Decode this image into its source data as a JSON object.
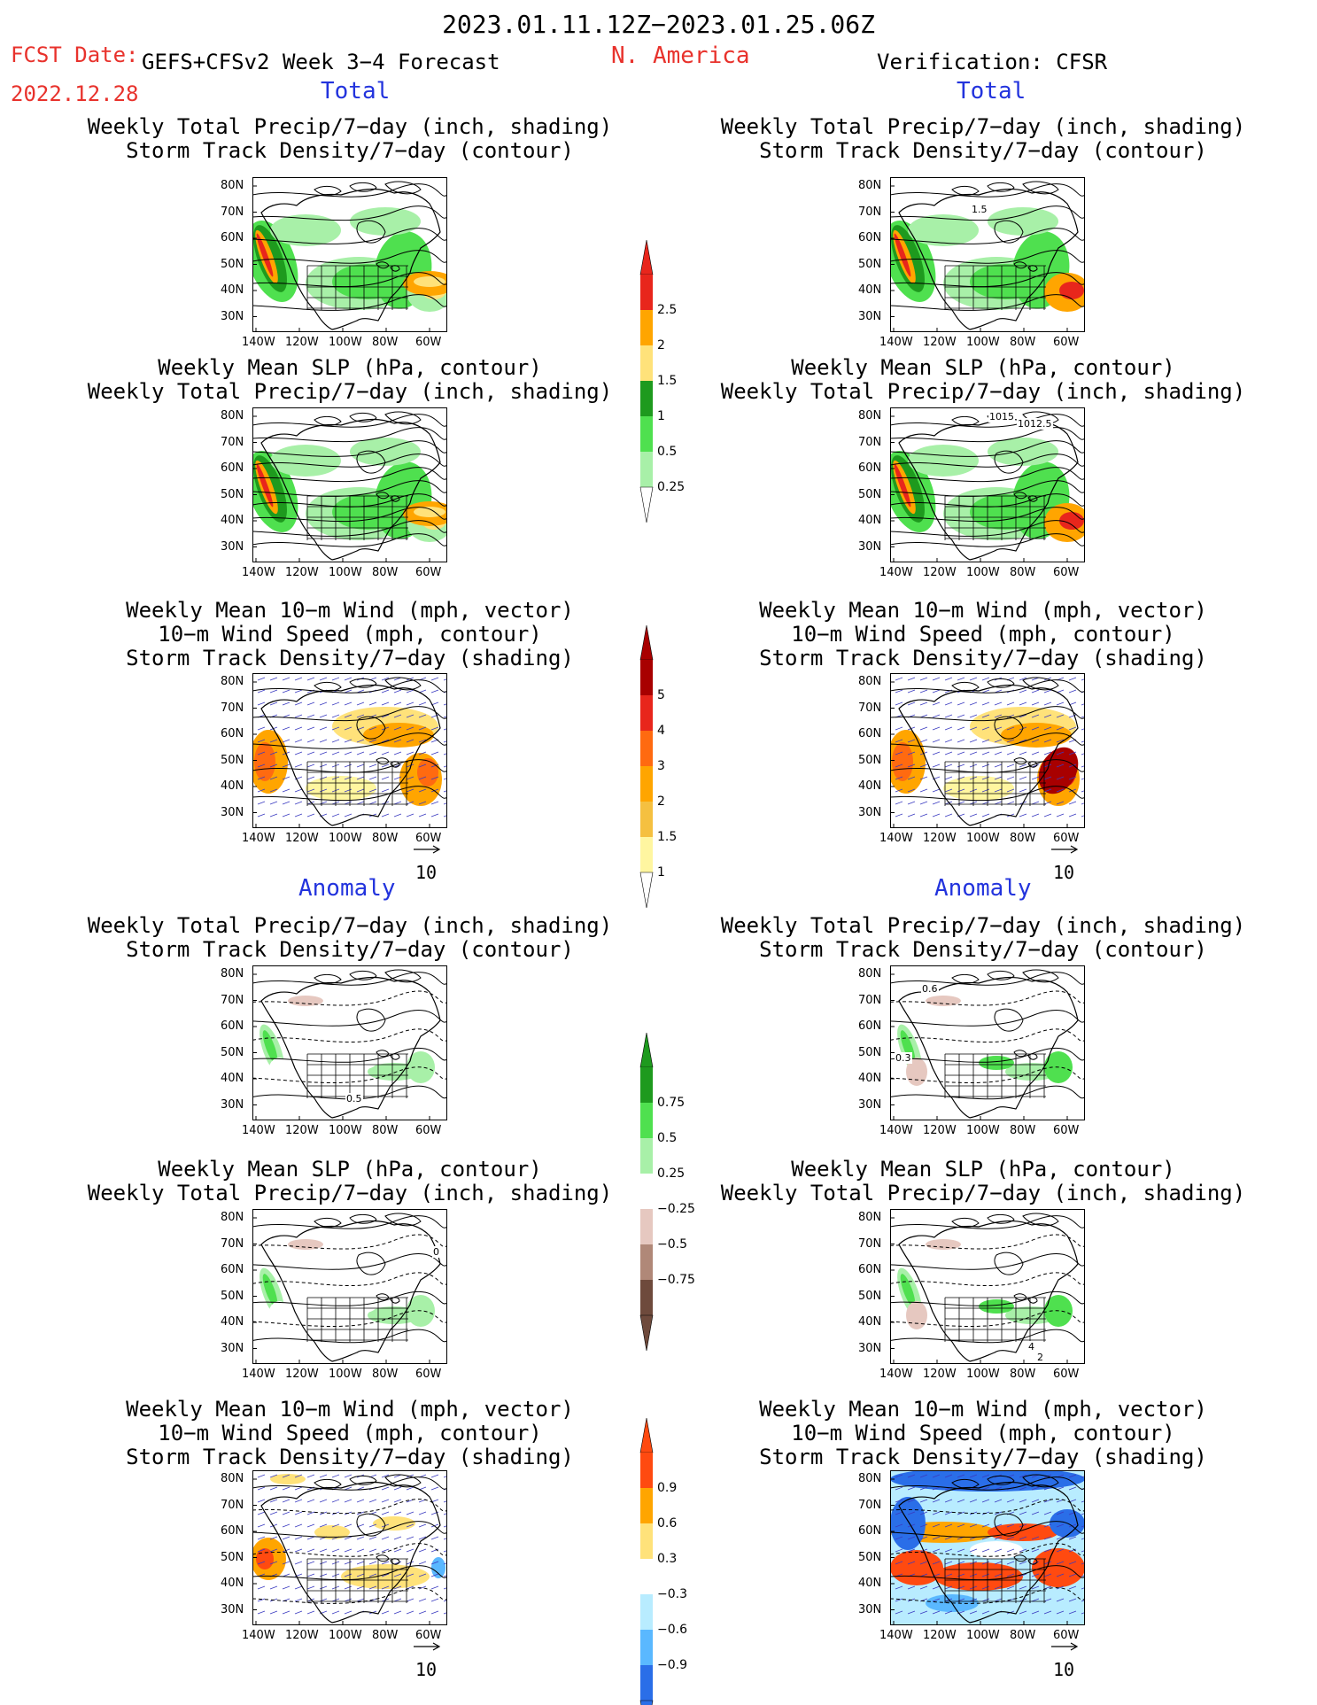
{
  "header": {
    "date_range": "2023.01.11.12Z−2023.01.25.06Z",
    "fcst_label": "FCST Date:",
    "fcst_date": "2022.12.28",
    "model": "GEFS+CFSv2 Week 3−4 Forecast",
    "region": "N. America",
    "verification": "Verification: CFSR"
  },
  "sections": {
    "total": "Total",
    "anomaly": "Anomaly"
  },
  "axis": {
    "lat_labels": [
      "80N",
      "70N",
      "60N",
      "50N",
      "40N",
      "30N"
    ],
    "lon_labels": [
      "140W",
      "120W",
      "100W",
      "80W",
      "60W"
    ]
  },
  "panel_titles": {
    "precip_track": [
      "Weekly Total Precip/7−day (inch, shading)",
      "Storm Track Density/7−day (contour)"
    ],
    "slp_precip": [
      "Weekly Mean SLP (hPa, contour)",
      "Weekly Total Precip/7−day (inch, shading)"
    ],
    "wind_track": [
      "Weekly Mean 10−m Wind (mph, vector)",
      "10−m Wind Speed (mph, contour)",
      "Storm Track Density/7−day (shading)"
    ]
  },
  "map_annotations": {
    "right_slp_1015": "1015",
    "right_slp_1012": "1012.5",
    "right_track_1_5": "1.5",
    "anom_left_0_5": "0.5",
    "anom_right_0_6": "0.6",
    "anom_right_0_3": "0.3",
    "anom_left_slp_0": "0",
    "anom_right_slp_4": "4",
    "anom_right_slp_2": "2"
  },
  "vector_ref": "10",
  "colorbars": {
    "precip_total": {
      "labels": [
        "2.5",
        "2",
        "1.5",
        "1",
        "0.5",
        "0.25"
      ],
      "colors": [
        "#e8261c",
        "#ffa500",
        "#ffe27a",
        "#1e9a1e",
        "#4fe04f",
        "#a8f0a8"
      ]
    },
    "track_total": {
      "labels": [
        "5",
        "4",
        "3",
        "2",
        "1.5",
        "1"
      ],
      "colors": [
        "#a80000",
        "#e8261c",
        "#ff6a10",
        "#ffa500",
        "#f5c040",
        "#fff6a0"
      ]
    },
    "precip_anom": {
      "labels": [
        "0.75",
        "0.5",
        "0.25",
        "−0.25",
        "−0.5",
        "−0.75"
      ],
      "colors": [
        "#1e9a1e",
        "#4fe04f",
        "#a8f0a8",
        "#ffffff",
        "#e6c8c0",
        "#b08878",
        "#6e4a3c"
      ]
    },
    "track_anom": {
      "labels": [
        "0.9",
        "0.6",
        "0.3",
        "−0.3",
        "−0.6",
        "−0.9"
      ],
      "colors": [
        "#ff4a10",
        "#ffa500",
        "#ffe27a",
        "#ffffff",
        "#b8ecff",
        "#5ab8ff",
        "#2a6ee8"
      ]
    }
  }
}
